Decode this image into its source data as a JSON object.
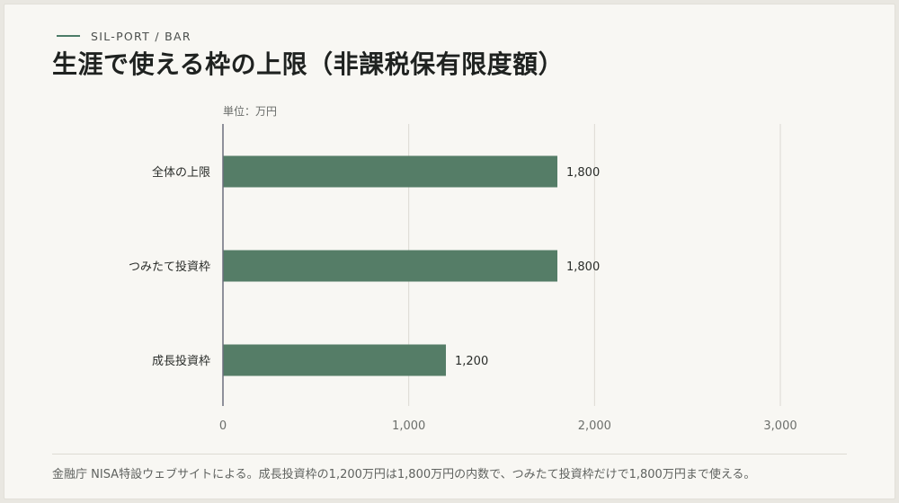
{
  "header": {
    "eyebrow": "SIL-PORT / BAR",
    "title": "生涯で使える枠の上限（非課税保有限度額）"
  },
  "footer": {
    "note": "金融庁 NISA特設ウェブサイトによる。成長投資枠の1,200万円は1,800万円の内数で、つみたて投資枠だけで1,800万円まで使える。"
  },
  "colors": {
    "bar": "#557d67",
    "accent": "#4c7c68",
    "grid": "#dcdad3",
    "axis": "#6b6f7d"
  },
  "chart_data": {
    "type": "bar",
    "orientation": "horizontal",
    "unit_label": "単位：万円",
    "categories": [
      "全体の上限",
      "つみたて投資枠",
      "成長投資枠"
    ],
    "values": [
      1800,
      1800,
      1200
    ],
    "value_labels": [
      "1,800",
      "1,800",
      "1,200"
    ],
    "xlim": [
      0,
      3000
    ],
    "xticks": [
      0,
      1000,
      2000,
      3000
    ],
    "xtick_labels": [
      "0",
      "1,000",
      "2,000",
      "3,000"
    ],
    "grid": true
  }
}
